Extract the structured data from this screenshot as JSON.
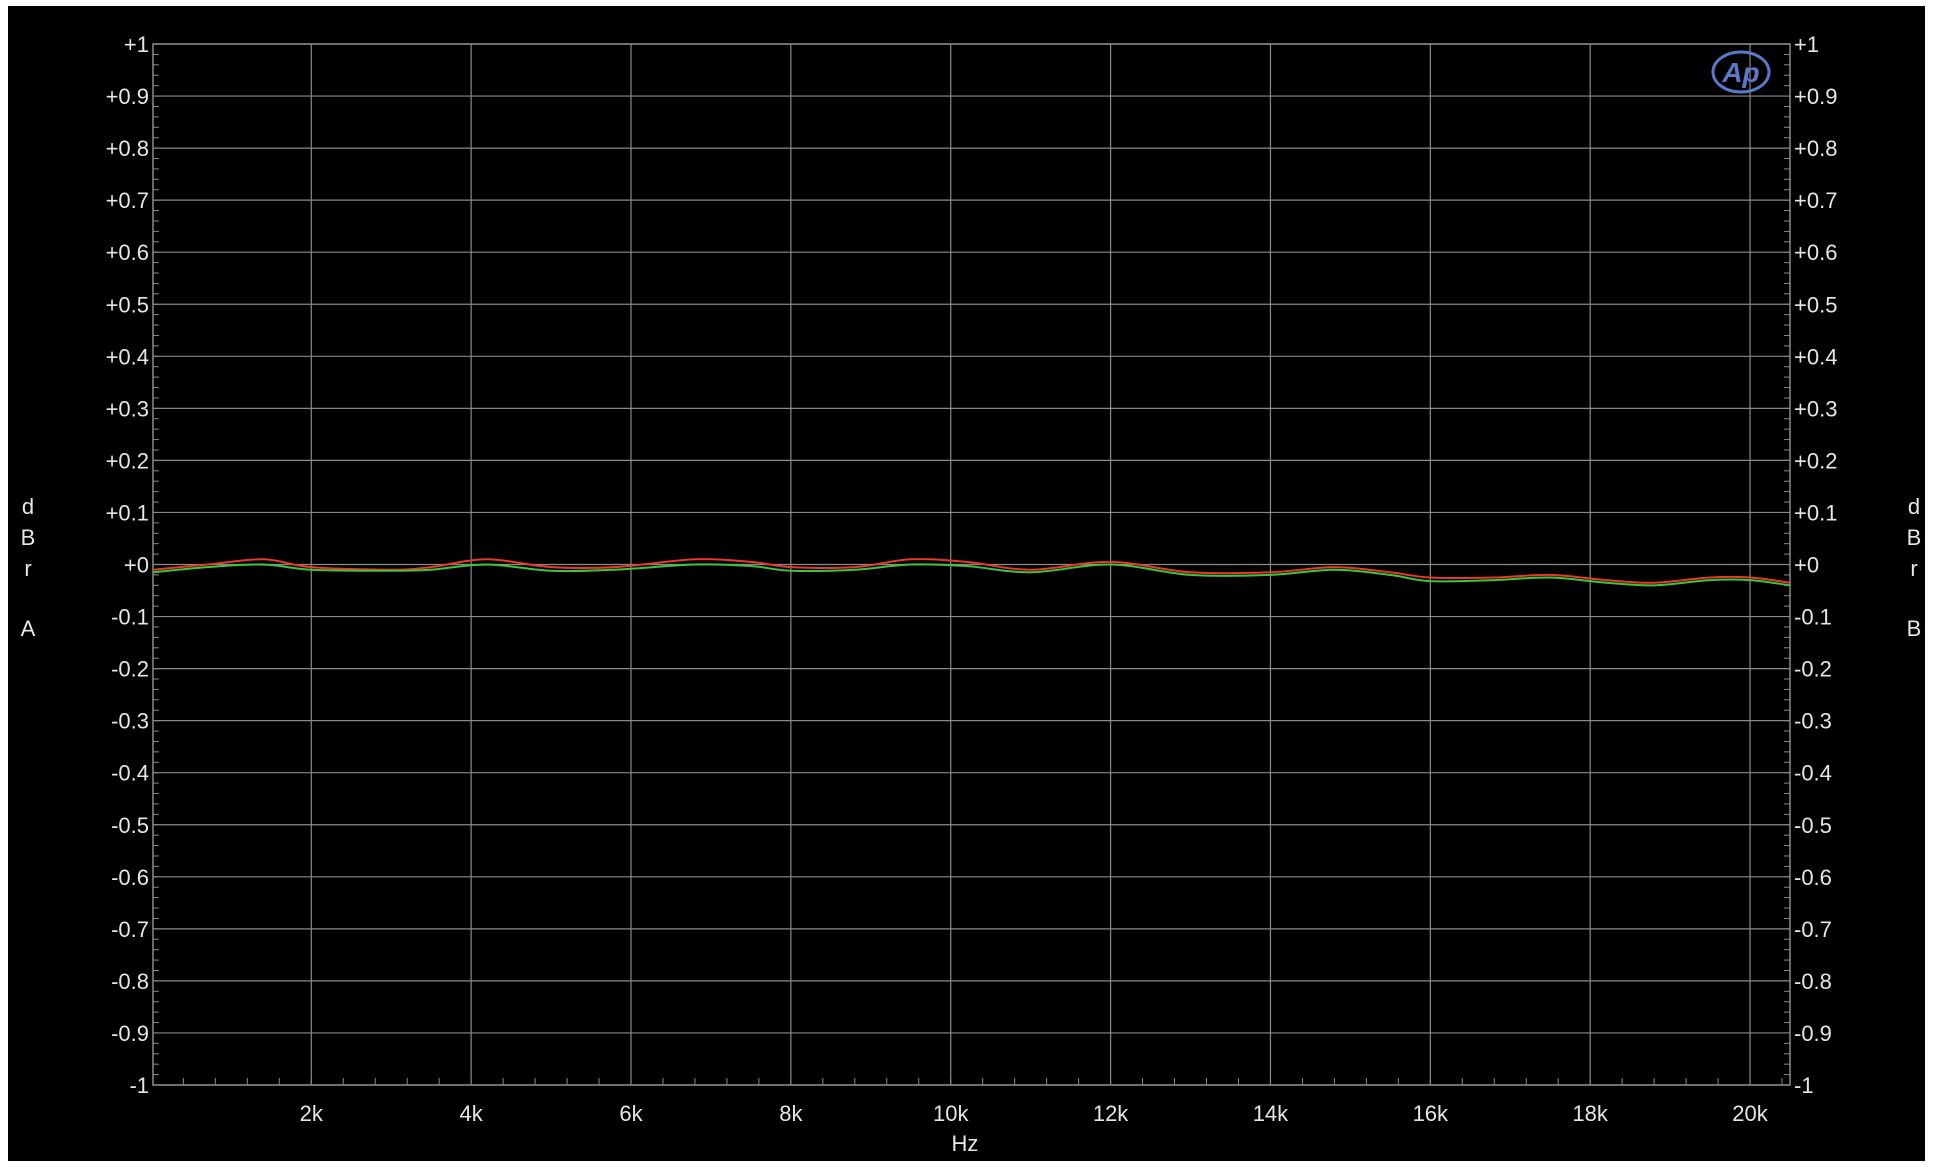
{
  "chart_data": {
    "type": "line",
    "title": "",
    "xlabel": "Hz",
    "ylabel_left": "dBr A",
    "ylabel_right": "dBr B",
    "x_range": [
      20,
      20500
    ],
    "ylim": [
      -1,
      1
    ],
    "x_ticks": [
      2000,
      4000,
      6000,
      8000,
      10000,
      12000,
      14000,
      16000,
      18000,
      20000
    ],
    "x_tick_labels": [
      "2k",
      "4k",
      "6k",
      "8k",
      "10k",
      "12k",
      "14k",
      "16k",
      "18k",
      "20k"
    ],
    "y_ticks": [
      1,
      0.9,
      0.8,
      0.7,
      0.6,
      0.5,
      0.4,
      0.3,
      0.2,
      0.1,
      0,
      -0.1,
      -0.2,
      -0.3,
      -0.4,
      -0.5,
      -0.6,
      -0.7,
      -0.8,
      -0.9,
      -1
    ],
    "y_tick_labels": [
      "+1",
      "+0.9",
      "+0.8",
      "+0.7",
      "+0.6",
      "+0.5",
      "+0.4",
      "+0.3",
      "+0.2",
      "+0.1",
      "+0",
      "-0.1",
      "-0.2",
      "-0.3",
      "-0.4",
      "-0.5",
      "-0.6",
      "-0.7",
      "-0.8",
      "-0.9",
      "-1"
    ],
    "grid": true,
    "logo_text": "Ap",
    "colors": {
      "background": "#000000",
      "grid": "#8a8a8a",
      "text": "#e6e6e6",
      "logo": "#5b78c8"
    },
    "series": [
      {
        "color": "#e83a2a",
        "x": [
          20,
          700,
          1400,
          2000,
          3000,
          3500,
          4200,
          5000,
          5800,
          6800,
          7500,
          8000,
          8800,
          9500,
          10200,
          11000,
          12000,
          13000,
          14000,
          14800,
          15500,
          16000,
          16800,
          17500,
          18200,
          18800,
          19500,
          20000,
          20500
        ],
        "y": [
          -0.01,
          0.0,
          0.01,
          -0.005,
          -0.01,
          -0.005,
          0.01,
          -0.005,
          -0.005,
          0.01,
          0.005,
          -0.005,
          -0.005,
          0.01,
          0.005,
          -0.01,
          0.005,
          -0.015,
          -0.015,
          -0.005,
          -0.015,
          -0.025,
          -0.025,
          -0.02,
          -0.03,
          -0.035,
          -0.025,
          -0.025,
          -0.035
        ]
      },
      {
        "color": "#3ec43e",
        "x": [
          20,
          700,
          1400,
          2000,
          3000,
          3500,
          4200,
          5000,
          5800,
          6800,
          7500,
          8000,
          8800,
          9500,
          10200,
          11000,
          12000,
          13000,
          14000,
          14800,
          15500,
          16000,
          16800,
          17500,
          18200,
          18800,
          19500,
          20000,
          20500
        ],
        "y": [
          -0.015,
          -0.005,
          0.0,
          -0.01,
          -0.012,
          -0.01,
          0.0,
          -0.012,
          -0.01,
          0.0,
          -0.003,
          -0.012,
          -0.01,
          0.0,
          -0.003,
          -0.015,
          0.0,
          -0.02,
          -0.02,
          -0.01,
          -0.02,
          -0.032,
          -0.03,
          -0.025,
          -0.035,
          -0.04,
          -0.03,
          -0.03,
          -0.04
        ]
      }
    ]
  }
}
